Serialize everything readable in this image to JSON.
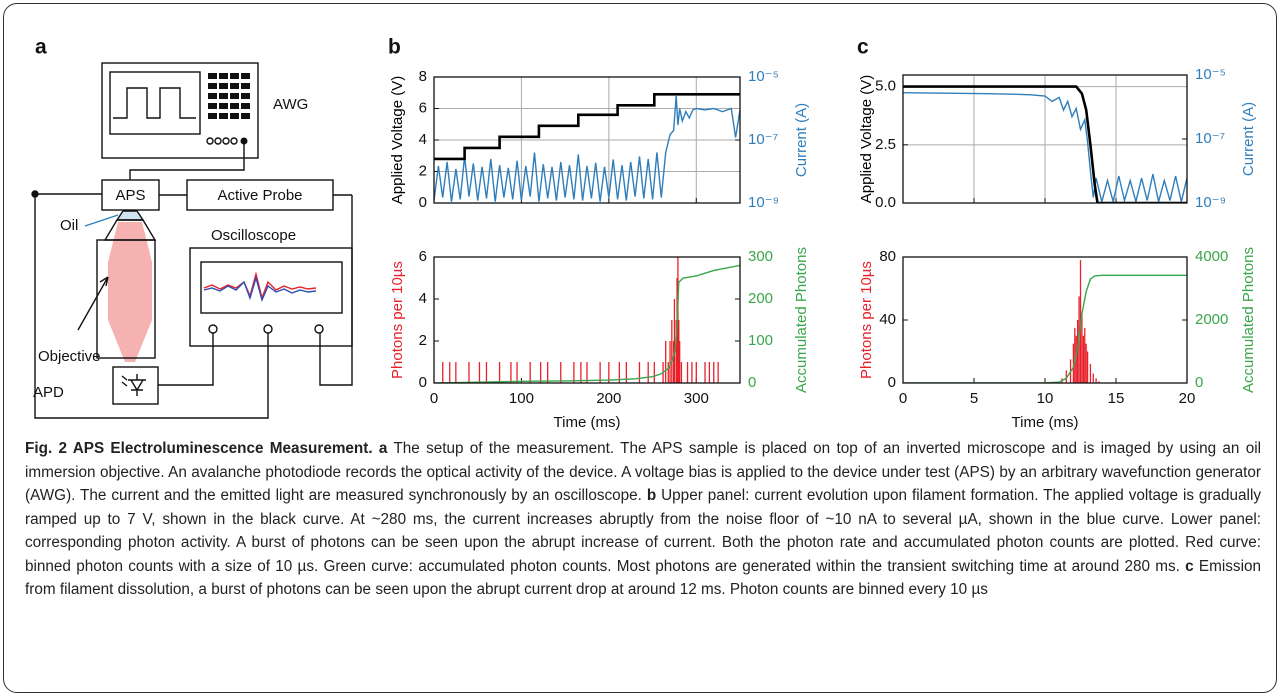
{
  "figure": {
    "diagram": {
      "label": "a",
      "awg": "AWG",
      "aps": "APS",
      "active_probe": "Active Probe",
      "oil": "Oil",
      "oscilloscope": "Oscilloscope",
      "objective": "Objective",
      "apd": "APD"
    },
    "caption": {
      "runs": [
        {
          "text": "Fig. 2 APS Electroluminescence Measurement.",
          "bold": true
        },
        {
          "text": " ",
          "bold": false
        },
        {
          "text": "a",
          "bold": true
        },
        {
          "text": " The setup of the measurement. The APS sample is placed on top of an inverted microscope and is imaged by using an oil immersion objective. An avalanche photodiode records the optical activity of the device. A voltage bias is applied to the device under test (APS) by an arbitrary wavefunction generator (AWG). The current and the emitted light are measured synchronously by an oscilloscope. ",
          "bold": false
        },
        {
          "text": "b",
          "bold": true
        },
        {
          "text": " Upper panel: current evolution upon filament formation. The applied voltage is gradually ramped up to 7 V, shown in the black curve. At ~280 ms, the current increases abruptly from the noise floor of ~10 nA to several µA, shown in the blue curve. Lower panel: corresponding photon activity. A burst of photons can be seen upon the abrupt increase of current. Both the photon rate and accumulated photon counts are plotted. Red curve: binned photon counts with a size of 10 µs. Green curve: accumulated photon counts. Most photons are generated within the transient switching time at around 280 ms. ",
          "bold": false
        },
        {
          "text": "c",
          "bold": true
        },
        {
          "text": " Emission from filament dissolution, a burst of photons can be seen upon the abrupt current drop at around 12 ms. Photon counts are binned every 10 µs",
          "bold": false
        }
      ]
    }
  },
  "chart_data": [
    {
      "type": "line",
      "panel_label": "b",
      "ylabel": "Applied Voltage (V)",
      "y2label": "Current (A)",
      "ylabel_color": "#000000",
      "y2label_color": "#2f7ebc",
      "grid": true,
      "xtick_labels": false,
      "xlim": [
        0,
        350
      ],
      "xticks": [
        0,
        100,
        200,
        300
      ],
      "ylim": [
        0,
        8
      ],
      "yticks": [
        0,
        2,
        4,
        6,
        8
      ],
      "y2lim": [
        1e-09,
        1e-05
      ],
      "y2log": true,
      "y2ticks": [
        {
          "value": 1e-09,
          "label": "10⁻⁹"
        },
        {
          "value": 1e-07,
          "label": "10⁻⁷"
        },
        {
          "value": 1e-05,
          "label": "10⁻⁵"
        }
      ],
      "series": [
        {
          "color": "#2f7ebc",
          "axis": "y2",
          "x": [
            0,
            5,
            10,
            15,
            20,
            25,
            30,
            35,
            40,
            45,
            50,
            55,
            60,
            65,
            70,
            75,
            80,
            85,
            90,
            95,
            100,
            105,
            110,
            115,
            120,
            125,
            130,
            135,
            140,
            145,
            150,
            155,
            160,
            165,
            170,
            175,
            180,
            185,
            190,
            195,
            200,
            205,
            210,
            215,
            220,
            225,
            230,
            235,
            240,
            245,
            250,
            255,
            260,
            265,
            270,
            274,
            277,
            279,
            281,
            284,
            288,
            292,
            296,
            300,
            310,
            320,
            330,
            340,
            345,
            350
          ],
          "values": [
            1.2e-09,
            1.5e-08,
            1.5e-09,
            2e-08,
            1.1e-09,
            1.2e-08,
            1.3e-09,
            3e-08,
            1.6e-09,
            1.8e-08,
            1.2e-09,
            1.4e-08,
            1.4e-09,
            2.5e-08,
            1.1e-09,
            1.6e-08,
            1.5e-09,
            1.3e-08,
            1.3e-09,
            2.2e-08,
            1.2e-09,
            1.5e-08,
            1.6e-09,
            4e-08,
            1.1e-09,
            1.7e-08,
            1.4e-09,
            1.4e-08,
            1.2e-09,
            2e-08,
            1.5e-09,
            1.6e-08,
            1.3e-09,
            3.5e-08,
            1.2e-09,
            1.5e-08,
            1.4e-09,
            1.9e-08,
            1.1e-09,
            1.4e-08,
            1.5e-09,
            2.4e-08,
            1.3e-09,
            1.6e-08,
            1.2e-09,
            2e-08,
            1.6e-09,
            3e-08,
            1.4e-09,
            2.5e-08,
            1.3e-09,
            4e-08,
            1.5e-09,
            4e-08,
            1.5e-07,
            2e-07,
            2.5e-06,
            3e-07,
            1e-06,
            4e-07,
            8e-07,
            5e-07,
            9e-07,
            1e-06,
            9e-07,
            1e-06,
            8e-07,
            1e-06,
            1.2e-07,
            9e-07
          ]
        },
        {
          "color": "#000000",
          "axis": "y",
          "x": [
            0,
            35,
            35,
            75,
            75,
            120,
            120,
            165,
            165,
            210,
            210,
            252,
            252,
            350
          ],
          "values": [
            2.8,
            2.8,
            3.5,
            3.5,
            4.2,
            4.2,
            4.9,
            4.9,
            5.6,
            5.6,
            6.2,
            6.2,
            6.9,
            6.9
          ]
        }
      ]
    },
    {
      "type": "line",
      "xlabel": "Time (ms)",
      "ylabel": "Photons per 10µs",
      "y2label": "Accumulated Photons",
      "ylabel_color": "#e8202a",
      "y2label_color": "#3aa64b",
      "grid": false,
      "xtick_labels": true,
      "xlim": [
        0,
        350
      ],
      "xticks": [
        0,
        100,
        200,
        300
      ],
      "ylim": [
        0,
        6
      ],
      "yticks": [
        0,
        2,
        4,
        6
      ],
      "y2lim": [
        0,
        300
      ],
      "y2ticks": [
        0,
        100,
        200,
        300
      ],
      "series": [
        {
          "color": "#e8202a",
          "axis": "y",
          "mark": "stem",
          "x": [
            10,
            18,
            25,
            40,
            52,
            60,
            75,
            88,
            95,
            110,
            122,
            130,
            145,
            160,
            168,
            175,
            190,
            200,
            212,
            220,
            235,
            245,
            252,
            262,
            265,
            268,
            270,
            272,
            274,
            275,
            277,
            278,
            279,
            280,
            281,
            283,
            290,
            295,
            300,
            310,
            315,
            320,
            325
          ],
          "values": [
            1,
            1,
            1,
            1,
            1,
            1,
            1,
            1,
            1,
            1,
            1,
            1,
            1,
            1,
            1,
            1,
            1,
            1,
            1,
            1,
            1,
            1,
            1,
            1,
            2,
            1,
            2,
            3,
            2,
            4,
            3,
            5,
            6,
            3,
            2,
            1,
            1,
            1,
            1,
            1,
            1,
            1,
            1
          ]
        },
        {
          "color": "#3aa64b",
          "axis": "y2",
          "x": [
            0,
            50,
            100,
            150,
            200,
            230,
            250,
            260,
            268,
            272,
            276,
            278,
            280,
            285,
            300,
            320,
            350
          ],
          "values": [
            0,
            2,
            4,
            5,
            7,
            10,
            15,
            22,
            35,
            50,
            80,
            150,
            240,
            250,
            255,
            268,
            280
          ]
        }
      ]
    },
    {
      "type": "line",
      "panel_label": "c",
      "ylabel": "Applied Voltage (V)",
      "y2label": "Current (A)",
      "ylabel_color": "#000000",
      "y2label_color": "#2f7ebc",
      "grid": true,
      "xtick_labels": false,
      "xlim": [
        0,
        20
      ],
      "xticks": [
        0,
        5,
        10,
        15,
        20
      ],
      "ylim": [
        0,
        5.5
      ],
      "yticks": [
        {
          "value": 0,
          "label": "0.0"
        },
        {
          "value": 2.5,
          "label": "2.5"
        },
        {
          "value": 5,
          "label": "5.0"
        }
      ],
      "y2lim": [
        1e-09,
        1e-05
      ],
      "y2log": true,
      "y2ticks": [
        {
          "value": 1e-09,
          "label": "10⁻⁹"
        },
        {
          "value": 1e-07,
          "label": "10⁻⁷"
        },
        {
          "value": 1e-05,
          "label": "10⁻⁵"
        }
      ],
      "series": [
        {
          "color": "#2f7ebc",
          "axis": "y2",
          "x": [
            0,
            3,
            6,
            8,
            9,
            10,
            10.5,
            11,
            11.3,
            11.6,
            11.9,
            12.2,
            12.5,
            12.8,
            13,
            13.2,
            13.4,
            13.6,
            14,
            14.4,
            14.8,
            15.2,
            15.6,
            16,
            16.4,
            16.8,
            17.2,
            17.6,
            18,
            18.4,
            18.8,
            19.2,
            19.6,
            20
          ],
          "values": [
            2.8e-06,
            2.7e-06,
            2.6e-06,
            2.5e-06,
            2.4e-06,
            2.2e-06,
            1.5e-06,
            2e-06,
            8e-07,
            1.5e-06,
            5e-07,
            9e-07,
            2e-07,
            4e-07,
            8e-08,
            1e-08,
            1.5e-09,
            6e-09,
            1.1e-09,
            5e-09,
            1.1e-09,
            7e-09,
            1.2e-09,
            5e-09,
            1.1e-09,
            6e-09,
            1.2e-09,
            8e-09,
            1.1e-09,
            5e-09,
            1.2e-09,
            7e-09,
            1.1e-09,
            6e-09
          ]
        },
        {
          "color": "#000000",
          "axis": "y",
          "x": [
            0,
            12.2,
            12.6,
            12.9,
            13.2,
            13.5,
            13.7,
            20
          ],
          "values": [
            5,
            5,
            4.7,
            4,
            2.5,
            0.8,
            0,
            0
          ]
        }
      ]
    },
    {
      "type": "line",
      "xlabel": "Time (ms)",
      "ylabel": "Photons per 10µs",
      "y2label": "Accumulated Photons",
      "ylabel_color": "#e8202a",
      "y2label_color": "#3aa64b",
      "grid": false,
      "xtick_labels": true,
      "xlim": [
        0,
        20
      ],
      "xticks": [
        0,
        5,
        10,
        15,
        20
      ],
      "ylim": [
        0,
        80
      ],
      "yticks": [
        0,
        40,
        80
      ],
      "y2lim": [
        0,
        4000
      ],
      "y2ticks": [
        0,
        2000,
        4000
      ],
      "series": [
        {
          "color": "#e8202a",
          "axis": "y",
          "mark": "stem",
          "x": [
            11.2,
            11.5,
            11.8,
            12,
            12.1,
            12.2,
            12.3,
            12.4,
            12.5,
            12.6,
            12.7,
            12.8,
            12.9,
            13,
            13.2,
            13.4,
            13.6,
            13.8
          ],
          "values": [
            3,
            8,
            15,
            25,
            35,
            30,
            40,
            55,
            78,
            45,
            30,
            35,
            25,
            20,
            12,
            6,
            3,
            1
          ]
        },
        {
          "color": "#3aa64b",
          "axis": "y2",
          "x": [
            0,
            10,
            11,
            11.5,
            12,
            12.3,
            12.6,
            12.9,
            13.2,
            13.5,
            14,
            20
          ],
          "values": [
            0,
            0,
            30,
            150,
            500,
            1100,
            2200,
            2900,
            3300,
            3400,
            3420,
            3420
          ]
        }
      ]
    }
  ]
}
